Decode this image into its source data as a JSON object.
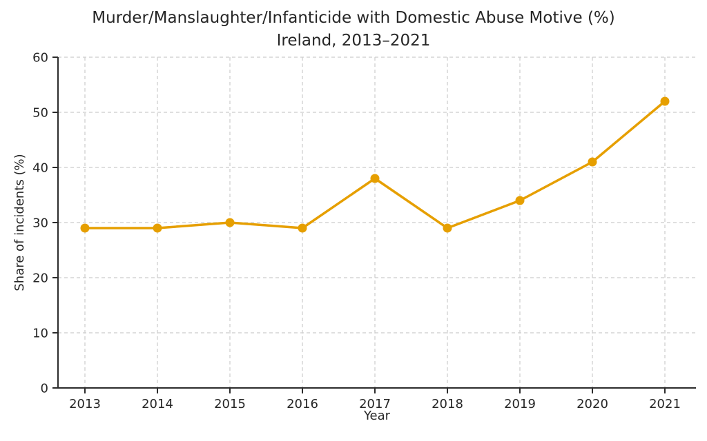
{
  "chart_data": {
    "type": "line",
    "title": "Murder/Manslaughter/Infanticide with Domestic Abuse Motive (%)",
    "subtitle": "Ireland, 2013–2021",
    "xlabel": "Year",
    "ylabel": "Share of incidents (%)",
    "x": [
      2013,
      2014,
      2015,
      2016,
      2017,
      2018,
      2019,
      2020,
      2021
    ],
    "series": [
      {
        "name": "Share of incidents (%)",
        "values": [
          29,
          29,
          30,
          29,
          38,
          29,
          34,
          41,
          52
        ]
      }
    ],
    "ylim": [
      0,
      60
    ],
    "yticks": [
      0,
      10,
      20,
      30,
      40,
      50,
      60
    ],
    "grid": true,
    "legend": "none",
    "colors": {
      "line": "#E69F00",
      "marker": "#E69F00",
      "grid": "#cccccc",
      "axis": "#2b2b2b",
      "text": "#262626",
      "background": "#ffffff"
    }
  }
}
